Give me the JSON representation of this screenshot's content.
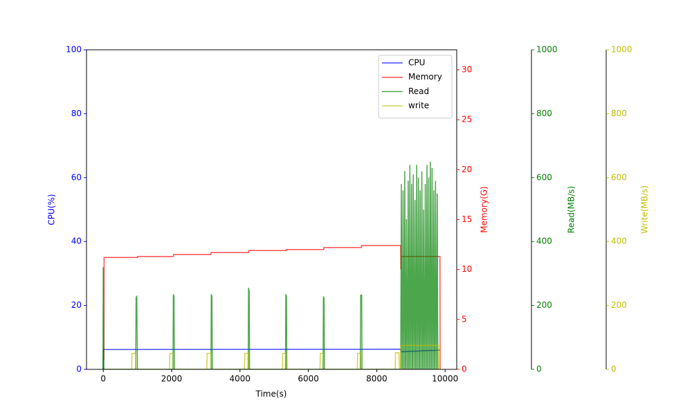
{
  "chart_data": {
    "type": "line",
    "xlabel": "Time(s)",
    "xlim": [
      -490,
      10340
    ],
    "xticks": [
      0,
      2000,
      4000,
      6000,
      8000,
      10000
    ],
    "y_axes": [
      {
        "label": "CPU(%)",
        "lim": [
          0,
          100
        ],
        "ticks": [
          0,
          20,
          40,
          60,
          80,
          100
        ],
        "color": "#0000ff"
      },
      {
        "label": "Memory(G)",
        "lim": [
          0,
          32
        ],
        "ticks": [
          0,
          5,
          10,
          15,
          20,
          25,
          30
        ],
        "color": "#ff0000"
      },
      {
        "label": "Read(MB/s)",
        "lim": [
          0,
          1000
        ],
        "ticks": [
          0,
          200,
          400,
          600,
          800,
          1000
        ],
        "color": "#008000"
      },
      {
        "label": "Write(MB/s)",
        "lim": [
          0,
          1000
        ],
        "ticks": [
          0,
          200,
          400,
          600,
          800,
          1000
        ],
        "color": "#bfbf00"
      }
    ],
    "legend": "upper right",
    "series": [
      {
        "name": "CPU",
        "color": "#0000ff",
        "axis": 0,
        "x": [
          0,
          10,
          50,
          8700,
          8720,
          9800,
          9840
        ],
        "values": [
          0,
          6.3,
          6.2,
          6.3,
          5.5,
          6,
          6
        ]
      },
      {
        "name": "Memory",
        "color": "#ff0000",
        "axis": 1,
        "x": [
          0,
          20,
          25,
          1000,
          1005,
          2050,
          2055,
          3150,
          3155,
          4250,
          4255,
          5350,
          5355,
          6450,
          6455,
          7550,
          7555,
          8700,
          8705,
          8710,
          9850,
          9855
        ],
        "values": [
          1,
          1,
          11.2,
          11.2,
          11.3,
          11.3,
          11.5,
          11.5,
          11.7,
          11.7,
          11.9,
          11.9,
          12.0,
          12.0,
          12.2,
          12.2,
          12.4,
          12.4,
          10,
          11.3,
          11.3,
          0
        ]
      },
      {
        "name": "Read",
        "color": "#008000",
        "axis": 2,
        "x": [
          -10,
          0,
          5,
          15,
          20,
          950,
          960,
          980,
          1000,
          2040,
          2050,
          2070,
          2080,
          3150,
          3160,
          3180,
          3190,
          4240,
          4250,
          4270,
          4280,
          5330,
          5340,
          5360,
          5370,
          6430,
          6440,
          6460,
          6470,
          7520,
          7530,
          7560,
          7570,
          8700,
          8720,
          8740,
          8750,
          8770,
          8790,
          8800,
          8820,
          8840,
          8850,
          8870,
          8890,
          8900,
          8920,
          8940,
          8950,
          8970,
          8990,
          9000,
          9020,
          9040,
          9050,
          9070,
          9090,
          9100,
          9120,
          9140,
          9150,
          9170,
          9190,
          9200,
          9220,
          9240,
          9250,
          9270,
          9290,
          9300,
          9320,
          9340,
          9350,
          9370,
          9390,
          9400,
          9420,
          9440,
          9450,
          9470,
          9490,
          9500,
          9520,
          9540,
          9550,
          9570,
          9590,
          9600,
          9620,
          9640,
          9650,
          9670,
          9690,
          9700,
          9720,
          9740,
          9750,
          9770,
          9790
        ],
        "values": [
          0,
          320,
          300,
          30,
          0,
          0,
          225,
          228,
          0,
          0,
          235,
          228,
          0,
          0,
          235,
          228,
          0,
          0,
          255,
          245,
          0,
          0,
          235,
          228,
          0,
          0,
          228,
          222,
          0,
          0,
          232,
          233,
          0,
          0,
          580,
          0,
          0,
          560,
          0,
          0,
          620,
          0,
          0,
          470,
          0,
          0,
          590,
          0,
          0,
          640,
          0,
          0,
          580,
          0,
          0,
          610,
          0,
          0,
          530,
          0,
          0,
          640,
          0,
          0,
          600,
          0,
          0,
          560,
          0,
          0,
          620,
          0,
          0,
          500,
          0,
          0,
          580,
          0,
          0,
          640,
          0,
          0,
          600,
          0,
          0,
          650,
          0,
          0,
          630,
          0,
          0,
          560,
          0,
          0,
          590,
          0,
          0,
          550,
          0
        ]
      },
      {
        "name": "write",
        "color": "#bfbf00",
        "axis": 3,
        "x": [
          0,
          830,
          840,
          950,
          960,
          1940,
          1950,
          2050,
          2060,
          3030,
          3040,
          3150,
          3160,
          4130,
          4140,
          4250,
          4260,
          5240,
          5250,
          5340,
          5350,
          6340,
          6350,
          6440,
          6450,
          7430,
          7440,
          7530,
          7540,
          8540,
          8550,
          8650,
          8660,
          8700,
          8710,
          9800,
          9810
        ],
        "values": [
          0,
          0,
          50,
          50,
          0,
          0,
          50,
          50,
          0,
          0,
          50,
          50,
          0,
          0,
          50,
          50,
          0,
          0,
          50,
          50,
          0,
          0,
          50,
          50,
          0,
          0,
          50,
          50,
          0,
          0,
          52,
          52,
          0,
          0,
          75,
          75,
          0
        ]
      }
    ]
  }
}
